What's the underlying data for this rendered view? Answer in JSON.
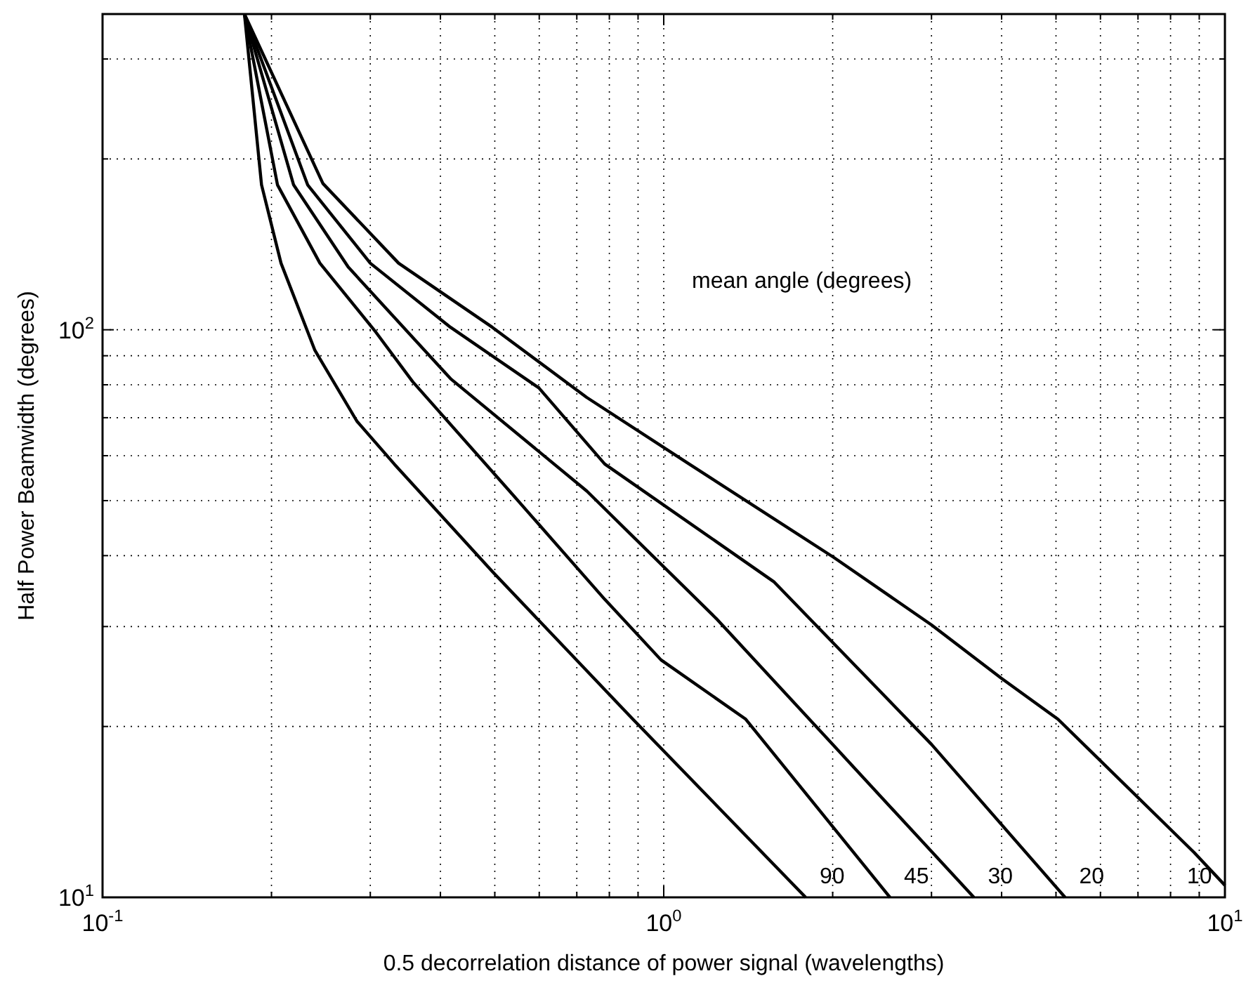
{
  "chart_data": {
    "type": "line",
    "xlabel": "0.5 decorrelation distance of power signal (wavelengths)",
    "ylabel": "Half Power Beamwidth (degrees)",
    "log": "xy",
    "grid": true,
    "line_style": "solid",
    "marker": "none",
    "xlim": [
      0.1,
      10
    ],
    "ylim": [
      10,
      360
    ],
    "xticks": [
      {
        "value": 0.1,
        "label": "10$^{-1}$"
      },
      {
        "value": 0.2,
        "label": null
      },
      {
        "value": 0.3,
        "label": null
      },
      {
        "value": 0.4,
        "label": null
      },
      {
        "value": 0.5,
        "label": null
      },
      {
        "value": 0.6,
        "label": null
      },
      {
        "value": 0.7,
        "label": null
      },
      {
        "value": 0.8,
        "label": null
      },
      {
        "value": 0.9,
        "label": null
      },
      {
        "value": 1,
        "label": "10$^{0}$"
      },
      {
        "value": 2,
        "label": null
      },
      {
        "value": 3,
        "label": null
      },
      {
        "value": 4,
        "label": null
      },
      {
        "value": 5,
        "label": null
      },
      {
        "value": 6,
        "label": null
      },
      {
        "value": 7,
        "label": null
      },
      {
        "value": 8,
        "label": null
      },
      {
        "value": 9,
        "label": null
      },
      {
        "value": 10,
        "label": "10$^{1}$"
      }
    ],
    "yticks": [
      {
        "value": 10,
        "label": "10$^{1}$"
      },
      {
        "value": 20,
        "label": null
      },
      {
        "value": 30,
        "label": null
      },
      {
        "value": 40,
        "label": null
      },
      {
        "value": 50,
        "label": null
      },
      {
        "value": 60,
        "label": null
      },
      {
        "value": 70,
        "label": null
      },
      {
        "value": 80,
        "label": null
      },
      {
        "value": 90,
        "label": null
      },
      {
        "value": 100,
        "label": "10$^{2}$"
      },
      {
        "value": 200,
        "label": null
      },
      {
        "value": 300,
        "label": null
      }
    ],
    "series": [
      {
        "name": "90",
        "color": "#000000",
        "x": [
          0.179,
          0.192,
          0.208,
          0.239,
          0.284,
          0.331,
          0.495,
          0.881,
          1.79
        ],
        "values": [
          360,
          180,
          131,
          92,
          69,
          58,
          37.5,
          20.6,
          10
        ]
      },
      {
        "name": "45",
        "color": "#000000",
        "x": [
          0.179,
          0.205,
          0.244,
          0.307,
          0.357,
          0.531,
          0.785,
          0.989,
          1.4,
          2.53
        ],
        "values": [
          360,
          180,
          131,
          99,
          81,
          52,
          33.5,
          26.2,
          20.6,
          10
        ]
      },
      {
        "name": "30",
        "color": "#000000",
        "x": [
          0.179,
          0.219,
          0.274,
          0.417,
          0.729,
          1.24,
          1.97,
          3.57
        ],
        "values": [
          360,
          180,
          129,
          82,
          52,
          31,
          18.9,
          10
        ]
      },
      {
        "name": "20",
        "color": "#000000",
        "x": [
          0.179,
          0.232,
          0.3,
          0.417,
          0.599,
          0.785,
          1.57,
          3.0,
          5.19
        ],
        "values": [
          360,
          180,
          131,
          101,
          79,
          58,
          36,
          18.6,
          10
        ]
      },
      {
        "name": "10",
        "color": "#000000",
        "x": [
          0.179,
          0.247,
          0.337,
          0.495,
          0.729,
          1.11,
          2.01,
          3.0,
          4.0,
          5.04,
          8.81,
          10
        ],
        "values": [
          360,
          181,
          131,
          101,
          76,
          58,
          39.7,
          30.2,
          24.3,
          20.6,
          12,
          10.5
        ]
      }
    ],
    "annotations": [
      "mean angle (degrees)"
    ]
  }
}
